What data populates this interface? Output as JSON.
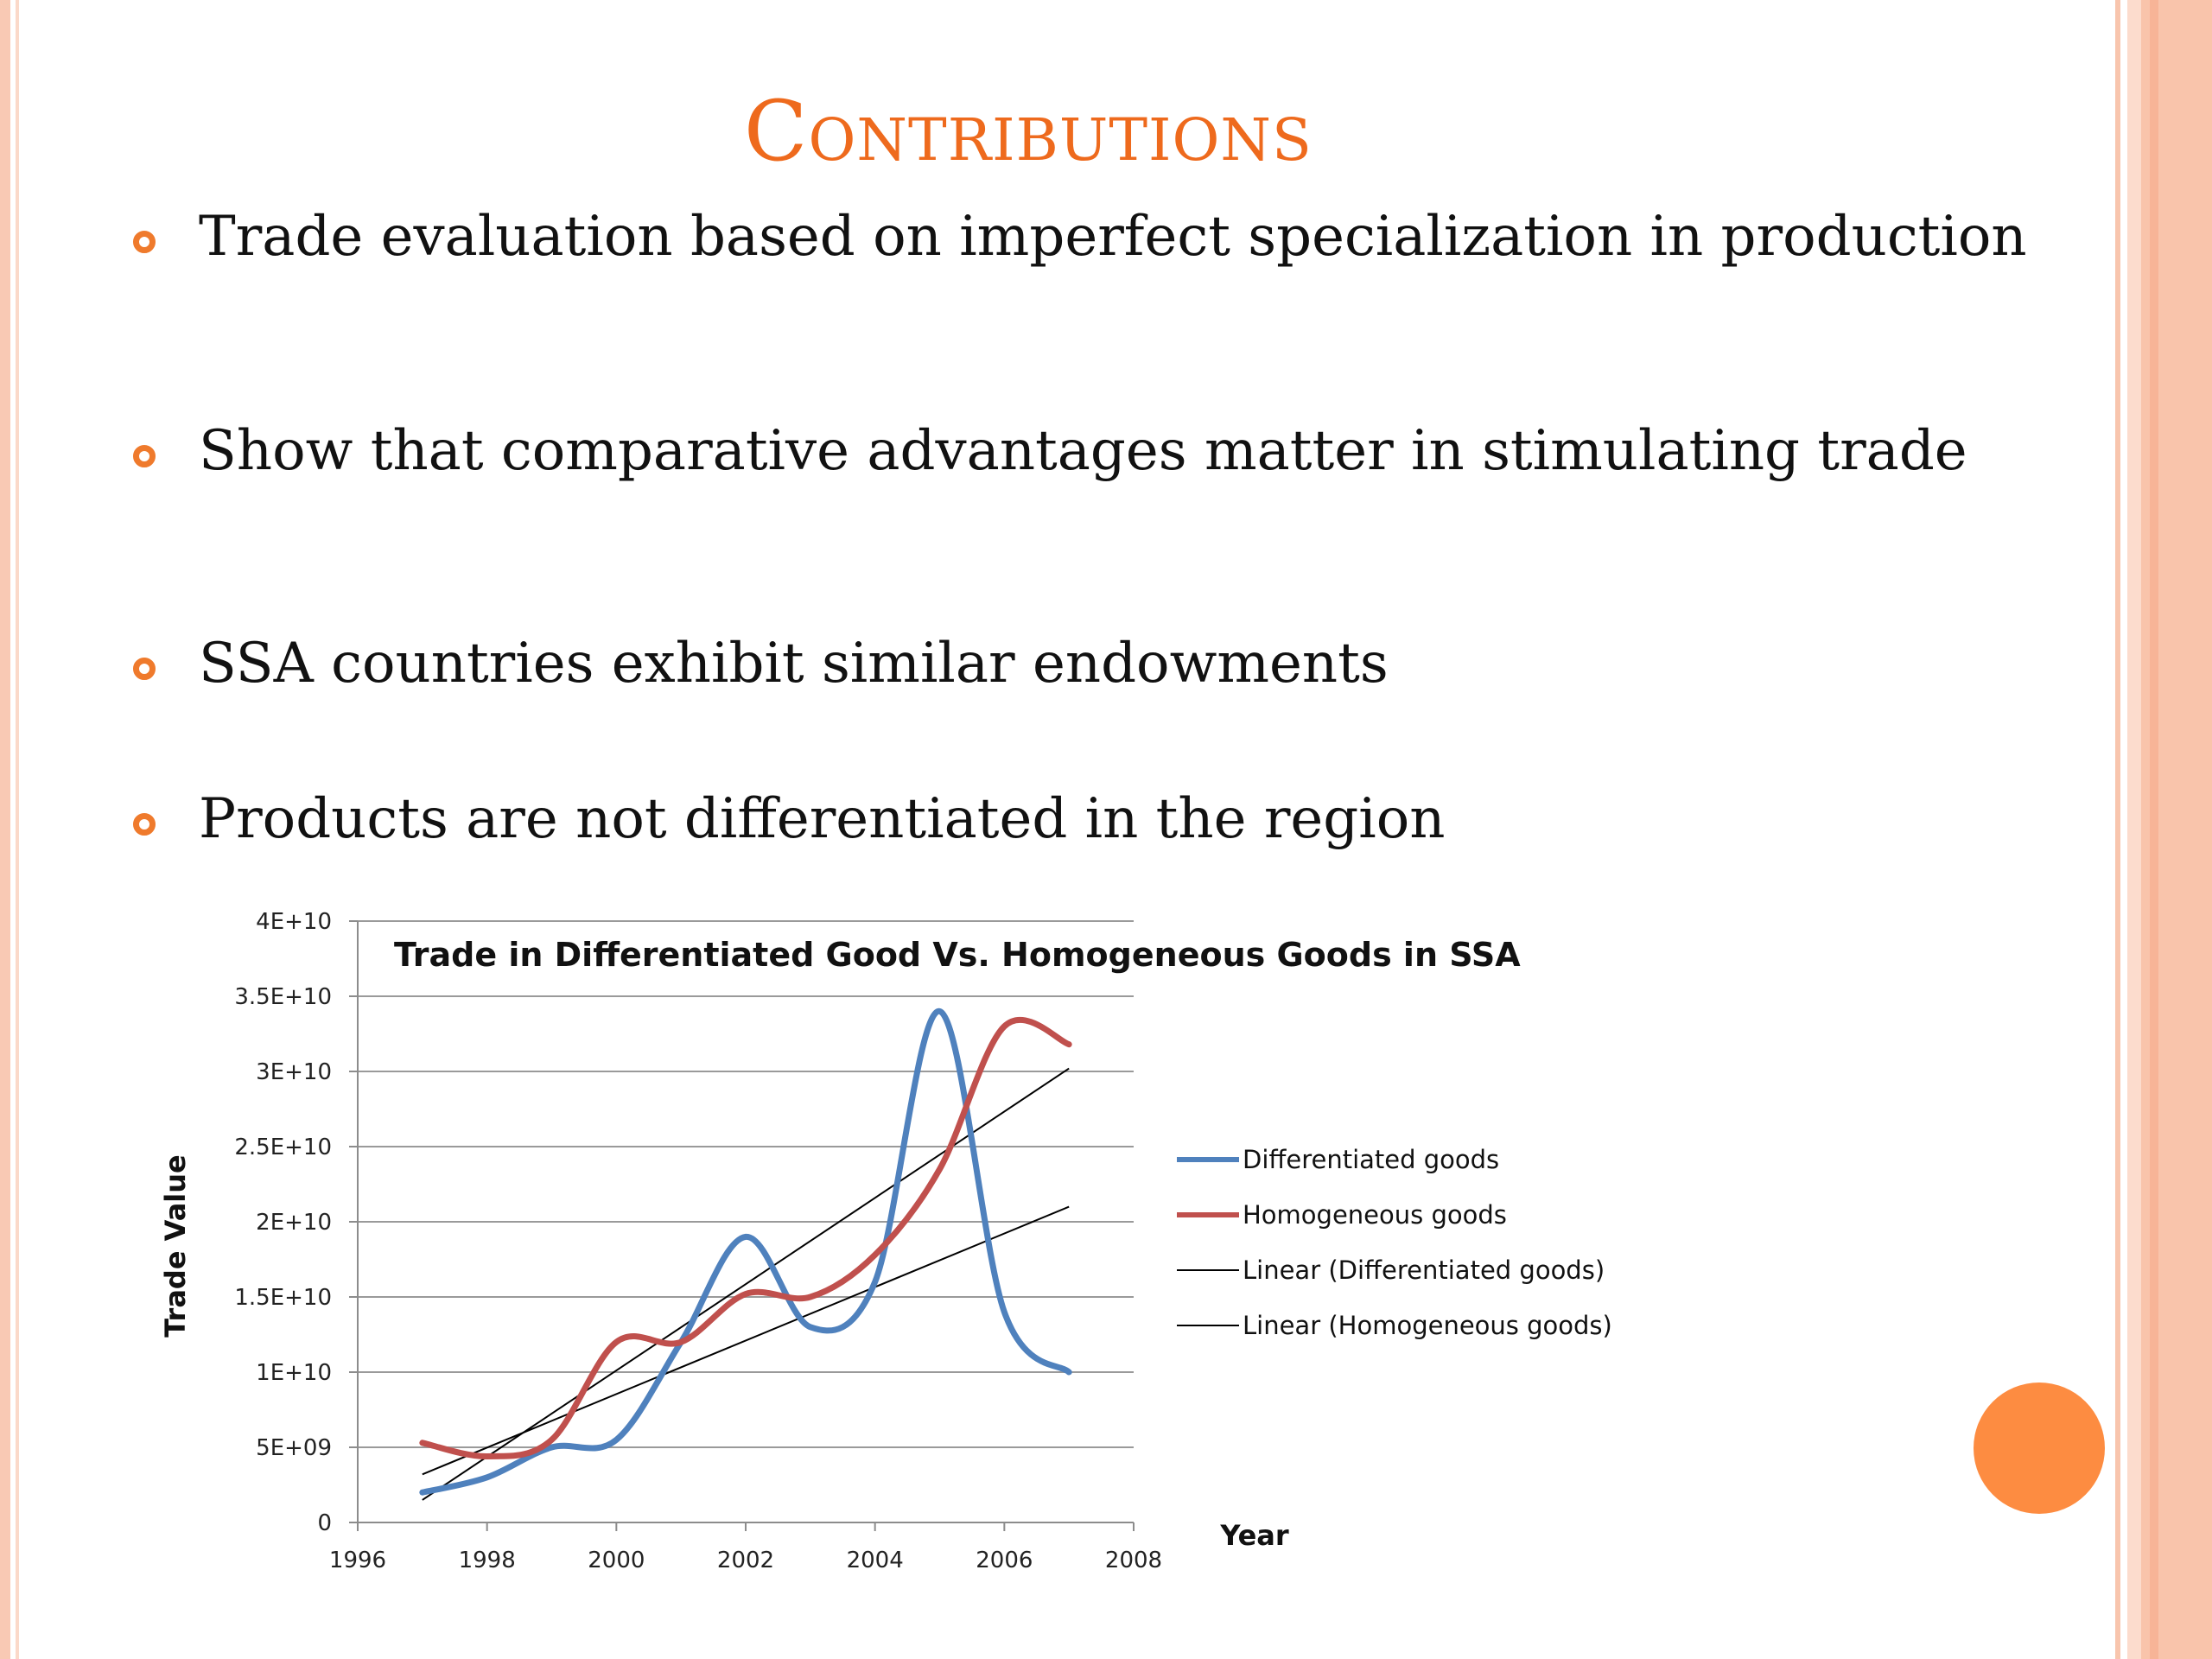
{
  "slide": {
    "title": "Contributions",
    "bullets": [
      "Trade evaluation based on imperfect specialization in production",
      "Show that comparative advantages matter in stimulating trade",
      "SSA countries exhibit similar endowments",
      "Products are not differentiated in the region"
    ]
  },
  "colors": {
    "title": "#ee6a1d",
    "bullet": "#ef7a2c",
    "accent_circle": "#fd8c41",
    "differentiated": "#4f81bd",
    "homogeneous": "#c0504d",
    "trend": "#000000"
  },
  "chart_data": {
    "type": "line",
    "title": "Trade in Differentiated Good Vs. Homogeneous Goods in SSA",
    "xlabel": "Year",
    "ylabel": "Trade Value",
    "xlim": [
      1996,
      2008
    ],
    "ylim": [
      0,
      40000000000
    ],
    "x_ticks": [
      "1996",
      "1998",
      "2000",
      "2002",
      "2004",
      "2006",
      "2008"
    ],
    "y_ticks": [
      "0",
      "5E+09",
      "1E+10",
      "1.5E+10",
      "2E+10",
      "2.5E+10",
      "3E+10",
      "3.5E+10",
      "4E+10"
    ],
    "grid": "horizontal",
    "legend_position": "right",
    "series": [
      {
        "name": "Differentiated goods",
        "x": [
          1997,
          1998,
          1999,
          2000,
          2001,
          2002,
          2003,
          2004,
          2005,
          2006,
          2007
        ],
        "values": [
          2000000000,
          3000000000,
          5000000000,
          5500000000,
          12000000000,
          19000000000,
          13000000000,
          16000000000,
          34000000000,
          14000000000,
          10000000000
        ],
        "color": "#4f81bd"
      },
      {
        "name": "Homogeneous goods",
        "x": [
          1997,
          1998,
          1999,
          2000,
          2001,
          2002,
          2003,
          2004,
          2005,
          2006,
          2007
        ],
        "values": [
          5300000000,
          4400000000,
          5500000000,
          12000000000,
          12000000000,
          15200000000,
          15000000000,
          17800000000,
          23500000000,
          33000000000,
          31800000000
        ],
        "color": "#c0504d"
      }
    ],
    "trendlines": [
      {
        "name": "Linear (Differentiated goods)",
        "x": [
          1997,
          2007
        ],
        "values": [
          3200000000,
          21000000000
        ]
      },
      {
        "name": "Linear (Homogeneous goods)",
        "x": [
          1997,
          2007
        ],
        "values": [
          1500000000,
          30200000000
        ]
      }
    ]
  }
}
